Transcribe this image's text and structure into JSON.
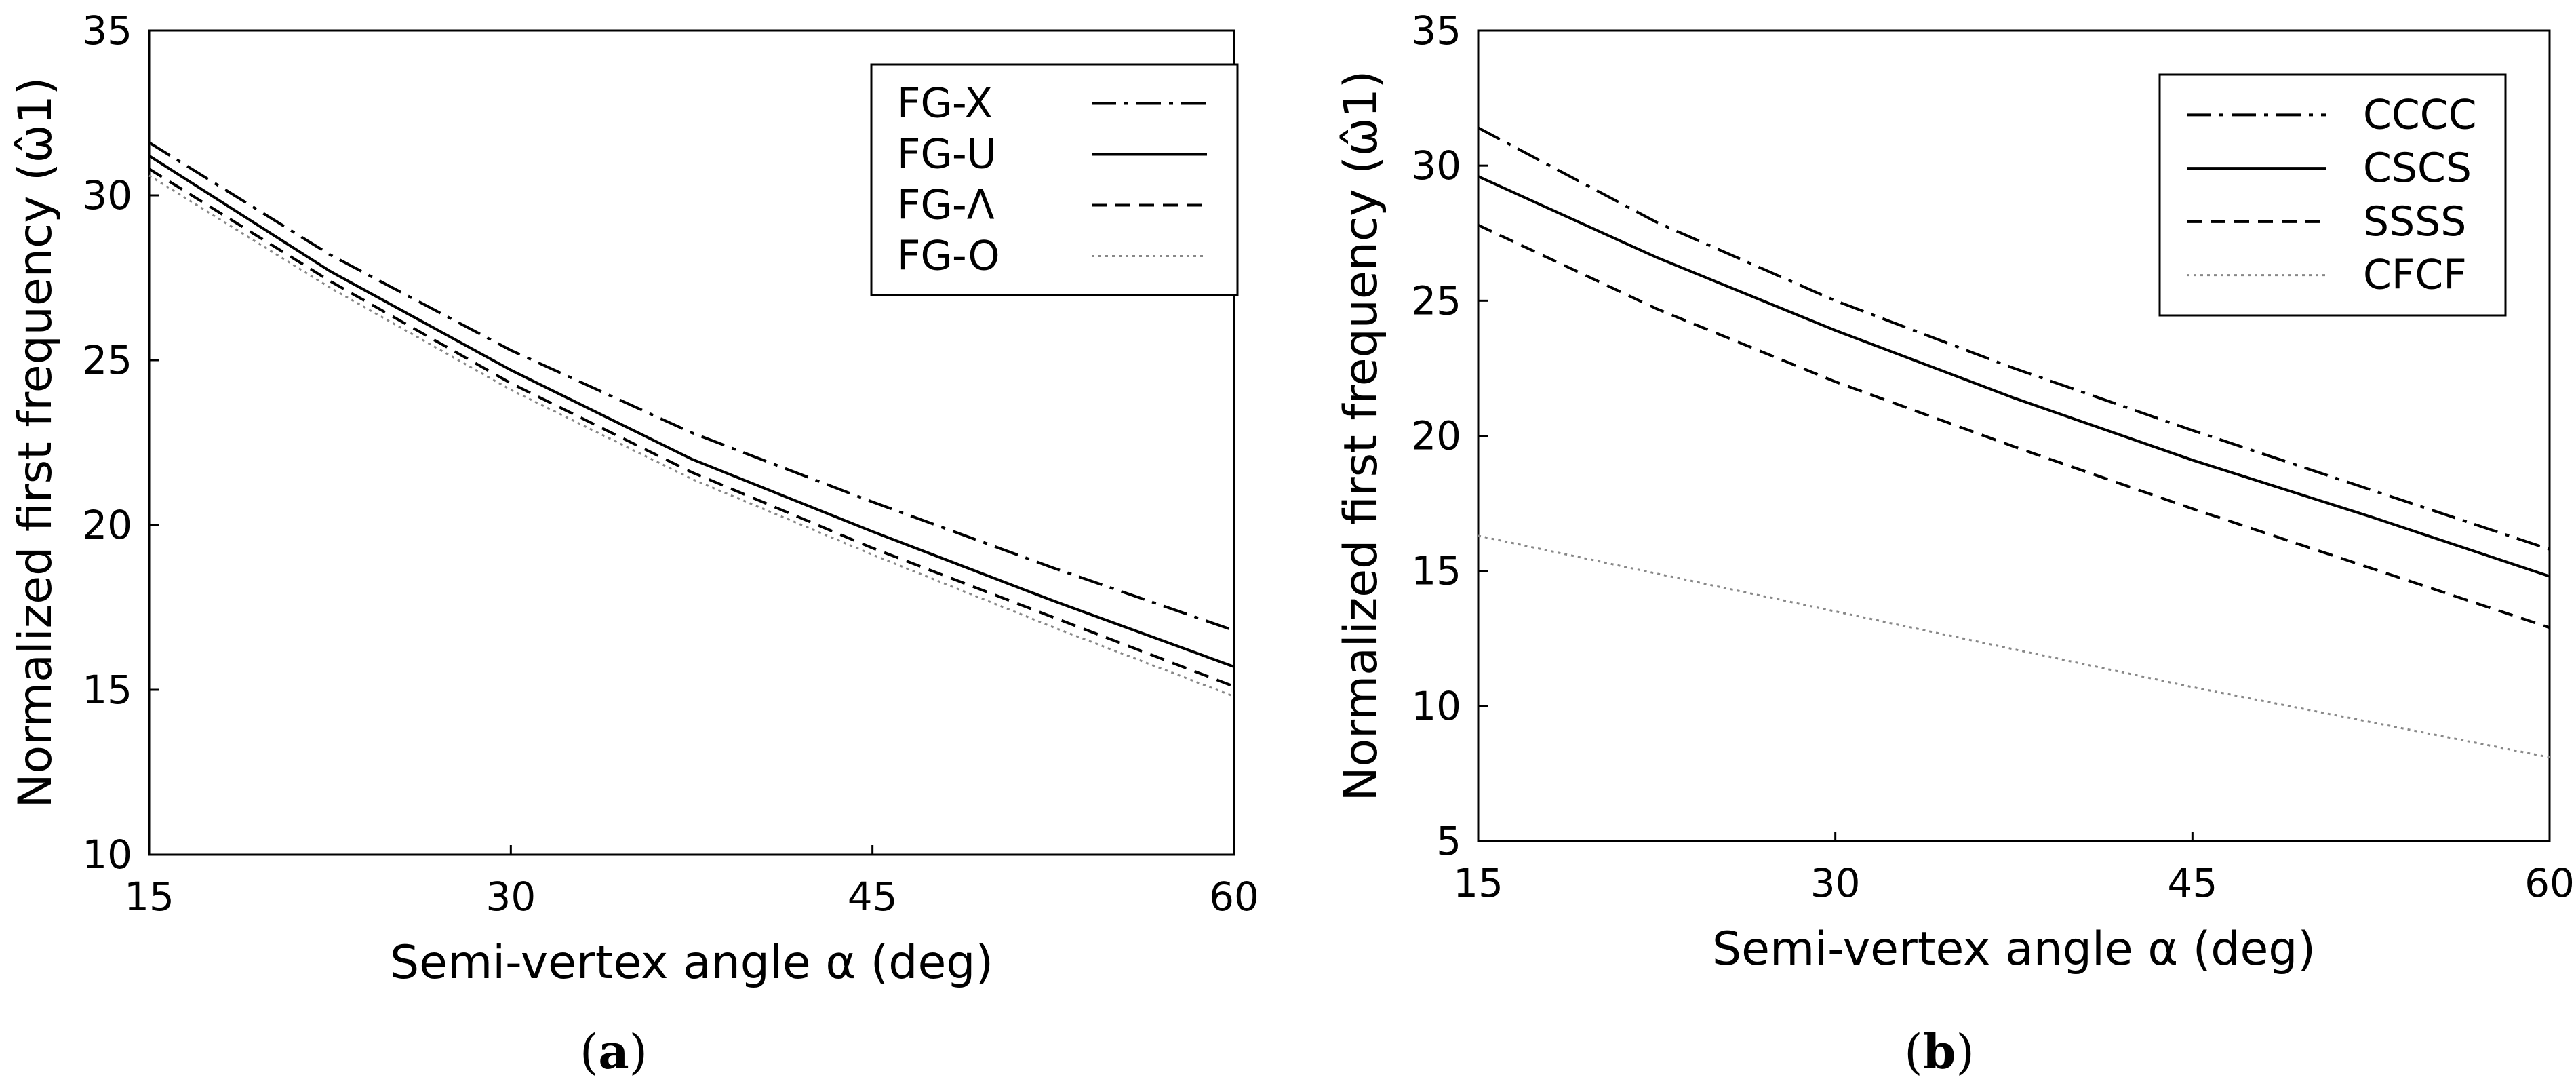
{
  "chart_data": [
    {
      "type": "line",
      "panel": "a",
      "caption_open": "(",
      "caption_letter": "a",
      "caption_close": ")",
      "xlabel": "Semi-vertex angle α (deg)",
      "ylabel": "Normalized first frequency (ω̂1)",
      "xlim": [
        15,
        60
      ],
      "ylim": [
        10,
        35
      ],
      "xticks": [
        15,
        30,
        45,
        60
      ],
      "yticks": [
        10,
        15,
        20,
        25,
        30,
        35
      ],
      "grid": false,
      "legend_position": "top-right",
      "x": [
        15,
        22.5,
        30,
        37.5,
        45,
        52.5,
        60
      ],
      "series": [
        {
          "name": "FG-X",
          "style": "dashdot",
          "color": "#000000",
          "values": [
            31.6,
            28.2,
            25.3,
            22.8,
            20.7,
            18.7,
            16.8
          ]
        },
        {
          "name": "FG-U",
          "style": "solid",
          "color": "#000000",
          "values": [
            31.2,
            27.7,
            24.7,
            22.0,
            19.8,
            17.7,
            15.7
          ]
        },
        {
          "name": "FG-Λ",
          "style": "dashed",
          "color": "#000000",
          "values": [
            30.8,
            27.4,
            24.3,
            21.6,
            19.3,
            17.2,
            15.1
          ]
        },
        {
          "name": "FG-O",
          "style": "dotted",
          "color": "#888888",
          "values": [
            30.6,
            27.2,
            24.1,
            21.4,
            19.1,
            16.9,
            14.8
          ]
        }
      ]
    },
    {
      "type": "line",
      "panel": "b",
      "caption_open": "(",
      "caption_letter": "b",
      "caption_close": ")",
      "xlabel": "Semi-vertex angle α (deg)",
      "ylabel": "Normalized first frequency (ω̂1)",
      "xlim": [
        15,
        60
      ],
      "ylim": [
        5,
        35
      ],
      "xticks": [
        15,
        30,
        45,
        60
      ],
      "yticks": [
        5,
        10,
        15,
        20,
        25,
        30,
        35
      ],
      "grid": false,
      "legend_position": "top-right",
      "x": [
        15,
        22.5,
        30,
        37.5,
        45,
        52.5,
        60
      ],
      "series": [
        {
          "name": "CCCC",
          "style": "dashdot",
          "color": "#000000",
          "values": [
            31.4,
            27.9,
            25.0,
            22.5,
            20.2,
            18.0,
            15.8
          ]
        },
        {
          "name": "CSCS",
          "style": "solid",
          "color": "#000000",
          "values": [
            29.6,
            26.6,
            23.9,
            21.4,
            19.1,
            17.0,
            14.8
          ]
        },
        {
          "name": "SSSS",
          "style": "dashed",
          "color": "#000000",
          "values": [
            27.8,
            24.7,
            22.0,
            19.6,
            17.3,
            15.1,
            12.9
          ]
        },
        {
          "name": "CFCF",
          "style": "dotted",
          "color": "#888888",
          "values": [
            16.3,
            14.9,
            13.5,
            12.1,
            10.7,
            9.4,
            8.1
          ]
        }
      ]
    }
  ]
}
